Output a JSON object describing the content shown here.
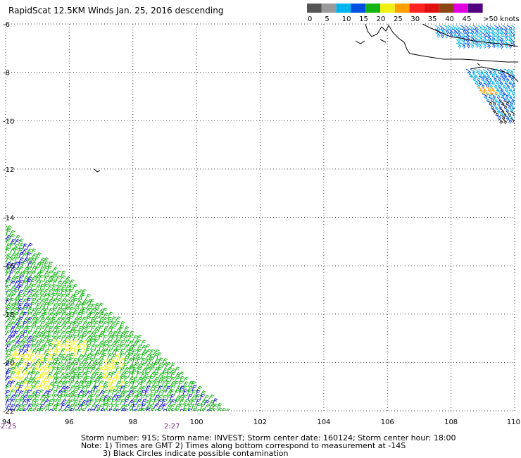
{
  "title": "RapidScat 12.5KM Winds Jan. 25, 2016 descending",
  "legend": {
    "unit_label": ">50 knots",
    "ticks": [
      "0",
      "5",
      "10",
      "15",
      "20",
      "25",
      "30",
      "35",
      "40",
      "45"
    ],
    "colors": [
      "#555555",
      "#9a9a9a",
      "#00b4f0",
      "#0050e0",
      "#14b414",
      "#f0f014",
      "#ffa000",
      "#ff2020",
      "#e01010",
      "#8b4513",
      "#e000e0",
      "#500080"
    ]
  },
  "map": {
    "lon_ticks": [
      "94",
      "96",
      "98",
      "100",
      "102",
      "104",
      "106",
      "108",
      "110"
    ],
    "lat_ticks": [
      "-6",
      "-8",
      "-10",
      "-12",
      "-14",
      "-16",
      "-18",
      "-20",
      "-22"
    ],
    "lon_range": [
      94,
      110
    ],
    "lat_range": [
      -22,
      -6
    ],
    "time_labels": [
      "2:25",
      "2:27"
    ]
  },
  "notes": {
    "line1": "Storm number: 91S;  Storm name: INVEST;  Storm center date: 160124;  Storm center hour: 18:00",
    "line2": "Note: 1) Times are GMT  2) Times along bottom correspond to measurement at -14S",
    "line3": "3) Black Circles indicate possible contamination"
  }
}
